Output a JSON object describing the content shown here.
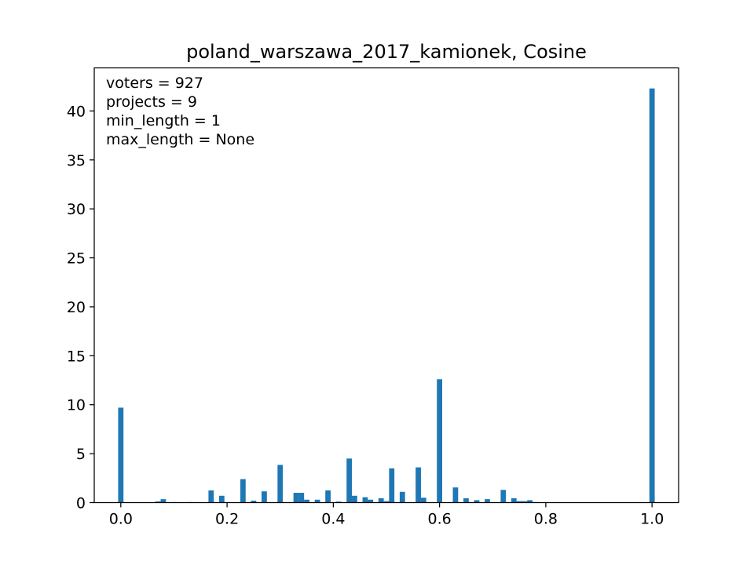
{
  "chart_data": {
    "type": "bar",
    "title": "poland_warszawa_2017_kamionek, Cosine",
    "xlabel": "",
    "ylabel": "",
    "xlim": [
      -0.05,
      1.05
    ],
    "ylim": [
      0,
      44.4
    ],
    "bar_width": 0.01,
    "bar_color": "#1f77b4",
    "grid": false,
    "x_ticks": [
      {
        "value": 0.0,
        "label": "0.0"
      },
      {
        "value": 0.2,
        "label": "0.2"
      },
      {
        "value": 0.4,
        "label": "0.4"
      },
      {
        "value": 0.6,
        "label": "0.6"
      },
      {
        "value": 0.8,
        "label": "0.8"
      },
      {
        "value": 1.0,
        "label": "1.0"
      }
    ],
    "y_ticks": [
      {
        "value": 0,
        "label": "0"
      },
      {
        "value": 5,
        "label": "5"
      },
      {
        "value": 10,
        "label": "10"
      },
      {
        "value": 15,
        "label": "15"
      },
      {
        "value": 20,
        "label": "20"
      },
      {
        "value": 25,
        "label": "25"
      },
      {
        "value": 30,
        "label": "30"
      },
      {
        "value": 35,
        "label": "35"
      },
      {
        "value": 40,
        "label": "40"
      }
    ],
    "annotations": [
      "voters = 927",
      "projects = 9",
      "min_length = 1",
      "max_length = None"
    ],
    "bars": [
      {
        "x": 0.0,
        "value": 9.7
      },
      {
        "x": 0.07,
        "value": 0.12
      },
      {
        "x": 0.08,
        "value": 0.35
      },
      {
        "x": 0.1,
        "value": 0.05
      },
      {
        "x": 0.13,
        "value": 0.05
      },
      {
        "x": 0.17,
        "value": 1.25
      },
      {
        "x": 0.19,
        "value": 0.7
      },
      {
        "x": 0.23,
        "value": 2.4
      },
      {
        "x": 0.25,
        "value": 0.2
      },
      {
        "x": 0.27,
        "value": 1.15
      },
      {
        "x": 0.3,
        "value": 3.85
      },
      {
        "x": 0.33,
        "value": 1.0
      },
      {
        "x": 0.34,
        "value": 1.0
      },
      {
        "x": 0.35,
        "value": 0.3
      },
      {
        "x": 0.37,
        "value": 0.3
      },
      {
        "x": 0.39,
        "value": 1.25
      },
      {
        "x": 0.41,
        "value": 0.1
      },
      {
        "x": 0.43,
        "value": 4.5
      },
      {
        "x": 0.44,
        "value": 0.7
      },
      {
        "x": 0.46,
        "value": 0.55
      },
      {
        "x": 0.47,
        "value": 0.3
      },
      {
        "x": 0.49,
        "value": 0.45
      },
      {
        "x": 0.5,
        "value": 0.15
      },
      {
        "x": 0.51,
        "value": 3.5
      },
      {
        "x": 0.53,
        "value": 1.1
      },
      {
        "x": 0.56,
        "value": 3.6
      },
      {
        "x": 0.57,
        "value": 0.5
      },
      {
        "x": 0.6,
        "value": 12.6
      },
      {
        "x": 0.63,
        "value": 1.55
      },
      {
        "x": 0.65,
        "value": 0.45
      },
      {
        "x": 0.67,
        "value": 0.25
      },
      {
        "x": 0.69,
        "value": 0.35
      },
      {
        "x": 0.72,
        "value": 1.3
      },
      {
        "x": 0.74,
        "value": 0.45
      },
      {
        "x": 0.75,
        "value": 0.15
      },
      {
        "x": 0.76,
        "value": 0.15
      },
      {
        "x": 0.77,
        "value": 0.25
      },
      {
        "x": 0.78,
        "value": 0.05
      },
      {
        "x": 1.0,
        "value": 42.3
      }
    ]
  }
}
